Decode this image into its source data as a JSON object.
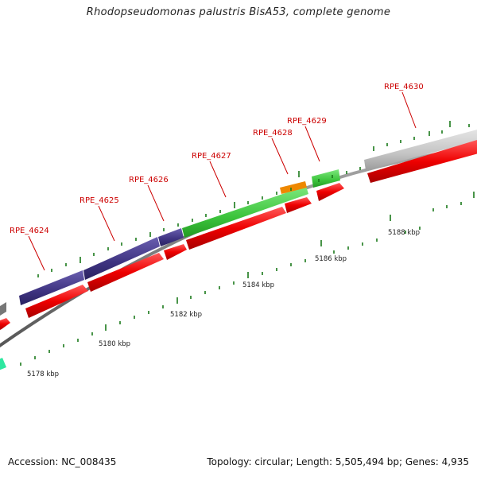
{
  "title": "Rhodopseudomonas palustris BisA53, complete genome",
  "footer": {
    "accession": "Accession: NC_008435",
    "topology": "Topology: circular; Length: 5,505,494 bp; Genes: 4,935"
  },
  "colors": {
    "cds_arrow": "#ee0000",
    "cog_purple": "#4a3d8f",
    "cog_green": "#3fc83f",
    "cog_orange": "#ee8800",
    "cog_gray": "#c8c8c8",
    "cog_dark_gray": "#777777",
    "cog_teal": "#2ee7a0",
    "backbone": "#888888",
    "label": "#cc0000",
    "tick": "#1a7a1a"
  },
  "gene_labels": [
    {
      "name": "RPE_4624",
      "feature": "gene-4624"
    },
    {
      "name": "RPE_4625",
      "feature": "gene-4625"
    },
    {
      "name": "RPE_4626",
      "feature": "gene-4626"
    },
    {
      "name": "RPE_4627",
      "feature": "gene-4627"
    },
    {
      "name": "RPE_4628",
      "feature": "gene-4628"
    },
    {
      "name": "RPE_4629",
      "feature": "gene-4629"
    },
    {
      "name": "RPE_4630",
      "feature": "gene-4630"
    }
  ],
  "scale_labels": [
    "5178 kbp",
    "5180 kbp",
    "5182 kbp",
    "5184 kbp",
    "5186 kbp",
    "5188 kbp"
  ]
}
